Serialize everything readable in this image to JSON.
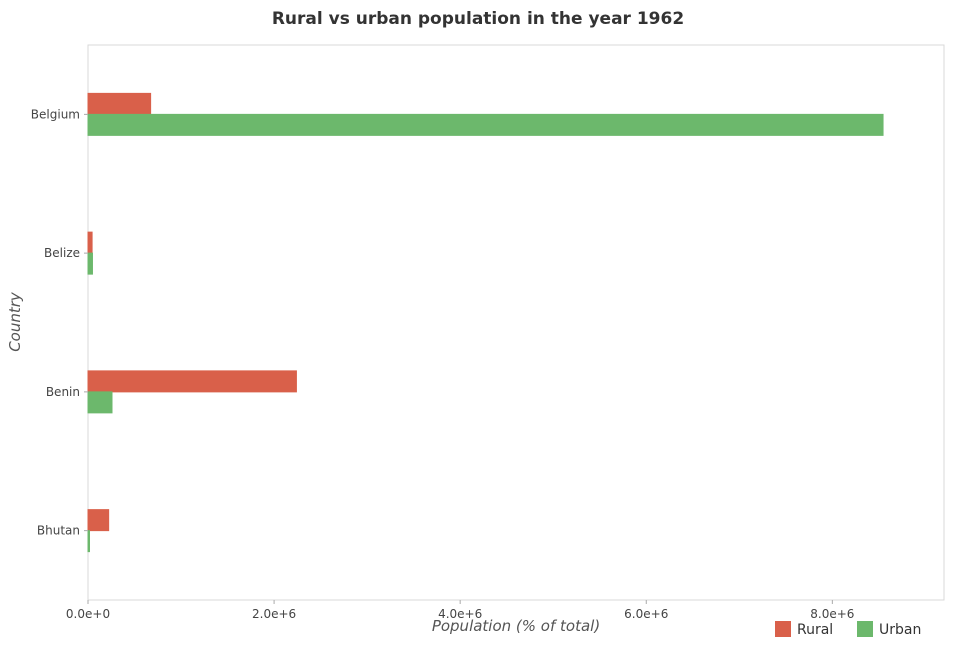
{
  "chart_data": {
    "type": "bar",
    "orientation": "horizontal",
    "title": "Rural vs urban population in the year 1962",
    "xlabel": "Population (% of total)",
    "ylabel": "Country",
    "categories": [
      "Belgium",
      "Belize",
      "Benin",
      "Bhutan"
    ],
    "series": [
      {
        "name": "Rural",
        "color": "#d9604a",
        "values": [
          673000,
          44000,
          2240000,
          222000
        ]
      },
      {
        "name": "Urban",
        "color": "#6cb86c",
        "values": [
          8545000,
          48000,
          258000,
          6000
        ]
      }
    ],
    "xlim": [
      0,
      9200000
    ],
    "xticks": [
      0,
      2000000,
      4000000,
      6000000,
      8000000
    ],
    "xtick_labels": [
      "0.0e+0",
      "2.0e+6",
      "4.0e+6",
      "6.0e+6",
      "8.0e+6"
    ],
    "grid": false,
    "legend_position": "bottom-right"
  }
}
